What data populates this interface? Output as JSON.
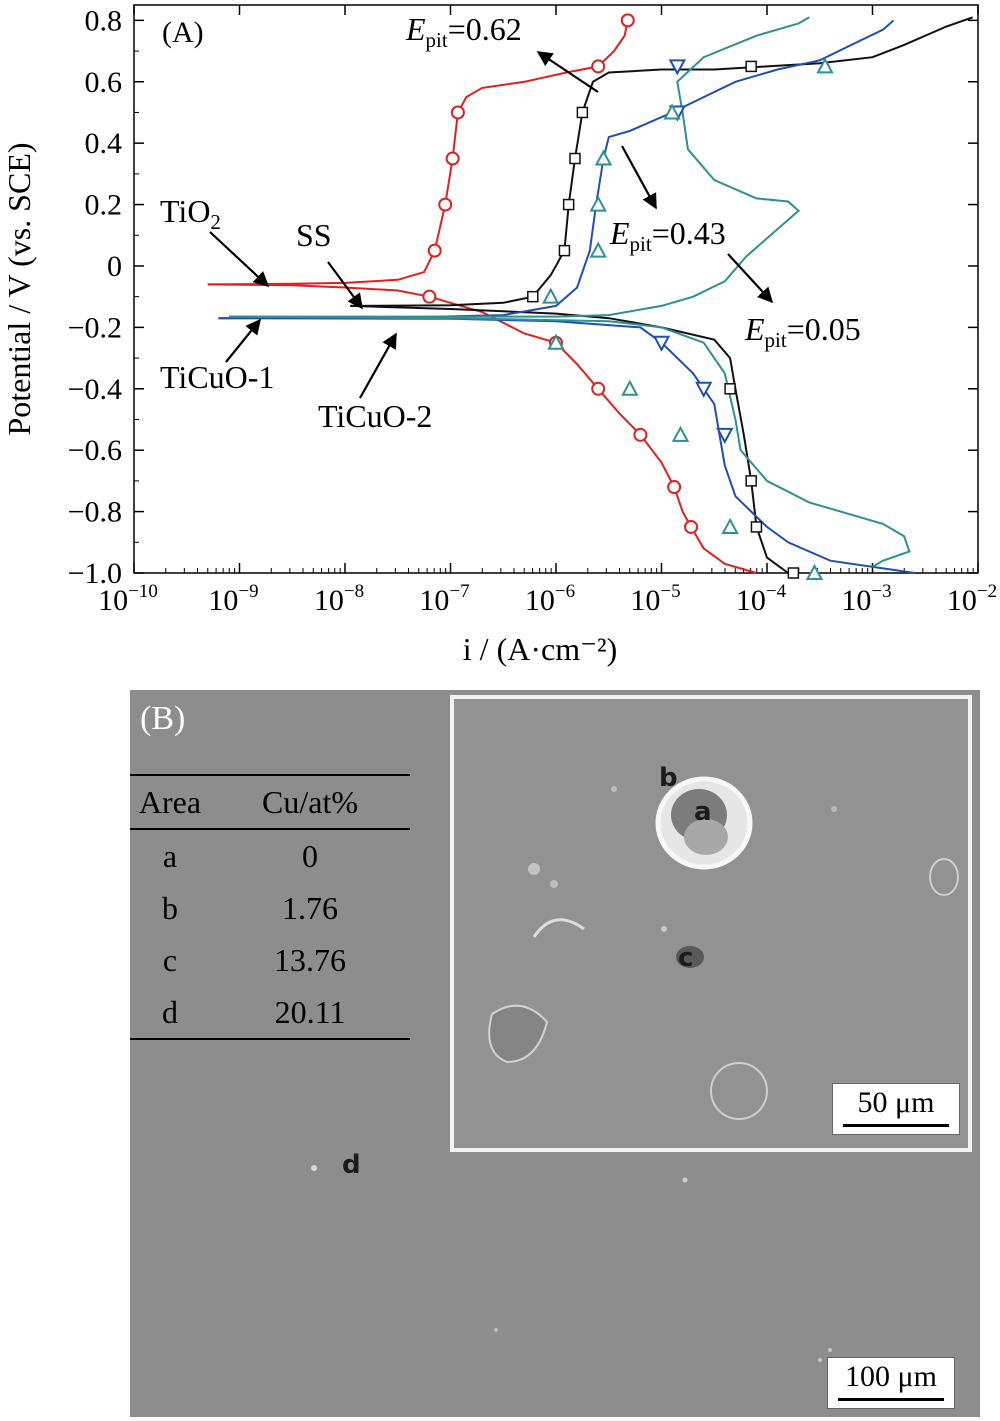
{
  "panel_a_label": "(A)",
  "panel_b_label": "(B)",
  "chart_data": {
    "type": "line",
    "xlabel": "i / (A·cm⁻²)",
    "ylabel": "Potential / V (vs. SCE)",
    "x_scale": "log",
    "xlim_exp": [
      -10,
      -2
    ],
    "ylim": [
      -1.0,
      0.85
    ],
    "x_ticks": [
      {
        "exp": -10,
        "label": "10",
        "sup": "−10"
      },
      {
        "exp": -9,
        "label": "10",
        "sup": "−9"
      },
      {
        "exp": -8,
        "label": "10",
        "sup": "−8"
      },
      {
        "exp": -7,
        "label": "10",
        "sup": "−7"
      },
      {
        "exp": -6,
        "label": "10",
        "sup": "−6"
      },
      {
        "exp": -5,
        "label": "10",
        "sup": "−5"
      },
      {
        "exp": -4,
        "label": "10",
        "sup": "−4"
      },
      {
        "exp": -3,
        "label": "10",
        "sup": "−3"
      },
      {
        "exp": -2,
        "label": "10",
        "sup": "−2"
      }
    ],
    "y_ticks": [
      {
        "v": 0.8,
        "label": "0.8"
      },
      {
        "v": 0.6,
        "label": "0.6"
      },
      {
        "v": 0.4,
        "label": "0.4"
      },
      {
        "v": 0.2,
        "label": "0.2"
      },
      {
        "v": 0,
        "label": "0"
      },
      {
        "v": -0.2,
        "label": "−0.2"
      },
      {
        "v": -0.4,
        "label": "−0.4"
      },
      {
        "v": -0.6,
        "label": "−0.6"
      },
      {
        "v": -0.8,
        "label": "−0.8"
      },
      {
        "v": -1.0,
        "label": "−1.0"
      }
    ],
    "series": [
      {
        "name": "TiO2",
        "color": "#e02020",
        "marker": "circle",
        "anodic": [
          [
            -9.3,
            -0.06
          ],
          [
            -8.5,
            -0.058
          ],
          [
            -8.0,
            -0.055
          ],
          [
            -7.5,
            -0.045
          ],
          [
            -7.25,
            -0.02
          ],
          [
            -7.15,
            0.05
          ],
          [
            -7.05,
            0.2
          ],
          [
            -6.98,
            0.35
          ],
          [
            -6.93,
            0.5
          ],
          [
            -6.85,
            0.55
          ],
          [
            -6.7,
            0.58
          ],
          [
            -6.3,
            0.6
          ],
          [
            -5.9,
            0.63
          ],
          [
            -5.6,
            0.65
          ],
          [
            -5.45,
            0.7
          ],
          [
            -5.35,
            0.75
          ],
          [
            -5.32,
            0.8
          ]
        ],
        "cathodic": [
          [
            -9.3,
            -0.06
          ],
          [
            -8.5,
            -0.063
          ],
          [
            -8.0,
            -0.07
          ],
          [
            -7.5,
            -0.08
          ],
          [
            -7.2,
            -0.1
          ],
          [
            -6.7,
            -0.15
          ],
          [
            -6.3,
            -0.22
          ],
          [
            -6.0,
            -0.25
          ],
          [
            -5.8,
            -0.32
          ],
          [
            -5.6,
            -0.4
          ],
          [
            -5.4,
            -0.48
          ],
          [
            -5.2,
            -0.55
          ],
          [
            -5.0,
            -0.64
          ],
          [
            -4.88,
            -0.72
          ],
          [
            -4.8,
            -0.8
          ],
          [
            -4.72,
            -0.85
          ],
          [
            -4.6,
            -0.92
          ],
          [
            -4.4,
            -0.97
          ],
          [
            -4.1,
            -1.0
          ]
        ],
        "anodic_markers": [
          [
            -7.15,
            0.05
          ],
          [
            -7.05,
            0.2
          ],
          [
            -6.98,
            0.35
          ],
          [
            -6.93,
            0.5
          ],
          [
            -5.6,
            0.65
          ],
          [
            -5.32,
            0.8
          ]
        ],
        "cathodic_markers": [
          [
            -7.2,
            -0.1
          ],
          [
            -6.0,
            -0.25
          ],
          [
            -5.6,
            -0.4
          ],
          [
            -5.2,
            -0.55
          ],
          [
            -4.88,
            -0.72
          ],
          [
            -4.72,
            -0.85
          ]
        ]
      },
      {
        "name": "SS",
        "color": "#111111",
        "marker": "square",
        "anodic": [
          [
            -7.95,
            -0.13
          ],
          [
            -7.0,
            -0.128
          ],
          [
            -6.5,
            -0.12
          ],
          [
            -6.22,
            -0.1
          ],
          [
            -6.05,
            -0.03
          ],
          [
            -5.92,
            0.05
          ],
          [
            -5.88,
            0.2
          ],
          [
            -5.82,
            0.35
          ],
          [
            -5.75,
            0.5
          ],
          [
            -5.65,
            0.6
          ],
          [
            -5.5,
            0.63
          ],
          [
            -5.0,
            0.64
          ],
          [
            -4.5,
            0.64
          ],
          [
            -4.0,
            0.65
          ],
          [
            -3.5,
            0.66
          ],
          [
            -3.0,
            0.68
          ],
          [
            -2.7,
            0.72
          ],
          [
            -2.3,
            0.78
          ],
          [
            -2.05,
            0.81
          ]
        ],
        "cathodic": [
          [
            -7.95,
            -0.13
          ],
          [
            -7.0,
            -0.14
          ],
          [
            -6.0,
            -0.155
          ],
          [
            -5.5,
            -0.17
          ],
          [
            -5.0,
            -0.2
          ],
          [
            -4.5,
            -0.24
          ],
          [
            -4.35,
            -0.3
          ],
          [
            -4.3,
            -0.4
          ],
          [
            -4.22,
            -0.55
          ],
          [
            -4.15,
            -0.7
          ],
          [
            -4.1,
            -0.85
          ],
          [
            -4.0,
            -0.95
          ],
          [
            -3.8,
            -1.0
          ]
        ],
        "anodic_markers": [
          [
            -6.22,
            -0.1
          ],
          [
            -5.92,
            0.05
          ],
          [
            -5.88,
            0.2
          ],
          [
            -5.82,
            0.35
          ],
          [
            -5.75,
            0.5
          ],
          [
            -4.15,
            0.65
          ]
        ],
        "cathodic_markers": [
          [
            -4.35,
            -0.4
          ],
          [
            -4.15,
            -0.7
          ],
          [
            -4.1,
            -0.85
          ],
          [
            -3.75,
            -1.0
          ]
        ]
      },
      {
        "name": "TiCuO-1",
        "color": "#1f4fb0",
        "marker": "triangle-down",
        "anodic": [
          [
            -9.2,
            -0.17
          ],
          [
            -7.5,
            -0.168
          ],
          [
            -6.5,
            -0.16
          ],
          [
            -6.0,
            -0.13
          ],
          [
            -5.8,
            -0.07
          ],
          [
            -5.68,
            0.05
          ],
          [
            -5.62,
            0.2
          ],
          [
            -5.55,
            0.35
          ],
          [
            -5.5,
            0.42
          ],
          [
            -5.3,
            0.44
          ],
          [
            -5.1,
            0.47
          ],
          [
            -4.9,
            0.5
          ],
          [
            -4.6,
            0.55
          ],
          [
            -4.3,
            0.6
          ],
          [
            -3.9,
            0.64
          ],
          [
            -3.5,
            0.67
          ],
          [
            -3.2,
            0.72
          ],
          [
            -2.9,
            0.77
          ],
          [
            -2.8,
            0.8
          ]
        ],
        "cathodic": [
          [
            -9.2,
            -0.17
          ],
          [
            -7.0,
            -0.172
          ],
          [
            -6.0,
            -0.18
          ],
          [
            -5.2,
            -0.2
          ],
          [
            -5.0,
            -0.25
          ],
          [
            -4.7,
            -0.35
          ],
          [
            -4.5,
            -0.45
          ],
          [
            -4.45,
            -0.55
          ],
          [
            -4.4,
            -0.65
          ],
          [
            -4.3,
            -0.75
          ],
          [
            -4.15,
            -0.8
          ],
          [
            -4.0,
            -0.85
          ],
          [
            -3.8,
            -0.9
          ],
          [
            -3.4,
            -0.96
          ],
          [
            -2.8,
            -0.99
          ],
          [
            -2.6,
            -1.0
          ]
        ],
        "anodic_markers": [
          [
            -4.85,
            0.65
          ],
          [
            -4.85,
            0.5
          ]
        ],
        "cathodic_markers": [
          [
            -5.0,
            -0.25
          ],
          [
            -4.6,
            -0.4
          ],
          [
            -4.4,
            -0.55
          ]
        ]
      },
      {
        "name": "TiCuO-2",
        "color": "#2e8f95",
        "marker": "triangle-up",
        "anodic": [
          [
            -9.1,
            -0.165
          ],
          [
            -7.0,
            -0.165
          ],
          [
            -6.0,
            -0.165
          ],
          [
            -5.5,
            -0.16
          ],
          [
            -5.0,
            -0.13
          ],
          [
            -4.7,
            -0.1
          ],
          [
            -4.4,
            -0.05
          ],
          [
            -4.2,
            0.03
          ],
          [
            -3.9,
            0.12
          ],
          [
            -3.7,
            0.18
          ],
          [
            -3.8,
            0.21
          ],
          [
            -4.1,
            0.22
          ],
          [
            -4.5,
            0.28
          ],
          [
            -4.75,
            0.38
          ],
          [
            -4.8,
            0.5
          ],
          [
            -4.85,
            0.6
          ],
          [
            -4.6,
            0.68
          ],
          [
            -4.1,
            0.75
          ],
          [
            -3.7,
            0.79
          ],
          [
            -3.6,
            0.81
          ]
        ],
        "cathodic": [
          [
            -9.1,
            -0.165
          ],
          [
            -7.0,
            -0.17
          ],
          [
            -5.5,
            -0.18
          ],
          [
            -5.0,
            -0.2
          ],
          [
            -4.6,
            -0.25
          ],
          [
            -4.4,
            -0.35
          ],
          [
            -4.3,
            -0.5
          ],
          [
            -4.25,
            -0.6
          ],
          [
            -4.0,
            -0.7
          ],
          [
            -3.6,
            -0.77
          ],
          [
            -3.2,
            -0.81
          ],
          [
            -2.9,
            -0.84
          ],
          [
            -2.7,
            -0.88
          ],
          [
            -2.65,
            -0.93
          ],
          [
            -2.9,
            -0.96
          ],
          [
            -3.0,
            -0.98
          ]
        ],
        "anodic_markers": [
          [
            -6.05,
            -0.1
          ],
          [
            -5.6,
            0.05
          ],
          [
            -5.6,
            0.2
          ],
          [
            -5.55,
            0.35
          ],
          [
            -4.9,
            0.5
          ],
          [
            -3.45,
            0.65
          ]
        ],
        "cathodic_markers": [
          [
            -6.0,
            -0.25
          ],
          [
            -5.3,
            -0.4
          ],
          [
            -4.82,
            -0.55
          ],
          [
            -4.35,
            -0.85
          ],
          [
            -3.55,
            -1.0
          ]
        ]
      }
    ],
    "annotations": [
      {
        "text": "TiO",
        "sub": "2",
        "italic_e": false
      },
      {
        "text": "SS",
        "sub": "",
        "italic_e": false
      },
      {
        "text": "TiCuO-1",
        "sub": "",
        "italic_e": false
      },
      {
        "text": "TiCuO-2",
        "sub": "",
        "italic_e": false
      },
      {
        "text": "=0.62",
        "sub": "pit",
        "italic_e": true
      },
      {
        "text": "=0.43",
        "sub": "pit",
        "italic_e": true
      },
      {
        "text": "=0.05",
        "sub": "pit",
        "italic_e": true
      }
    ]
  },
  "table": {
    "headers": [
      "Area",
      "Cu/at%"
    ],
    "rows": [
      [
        "a",
        "0"
      ],
      [
        "b",
        "1.76"
      ],
      [
        "c",
        "13.76"
      ],
      [
        "d",
        "20.11"
      ]
    ]
  },
  "areas": {
    "a": "a",
    "b": "b",
    "c": "c",
    "d": "d"
  },
  "scalebar_inset": "50 μm",
  "scalebar_main": "100 μm"
}
